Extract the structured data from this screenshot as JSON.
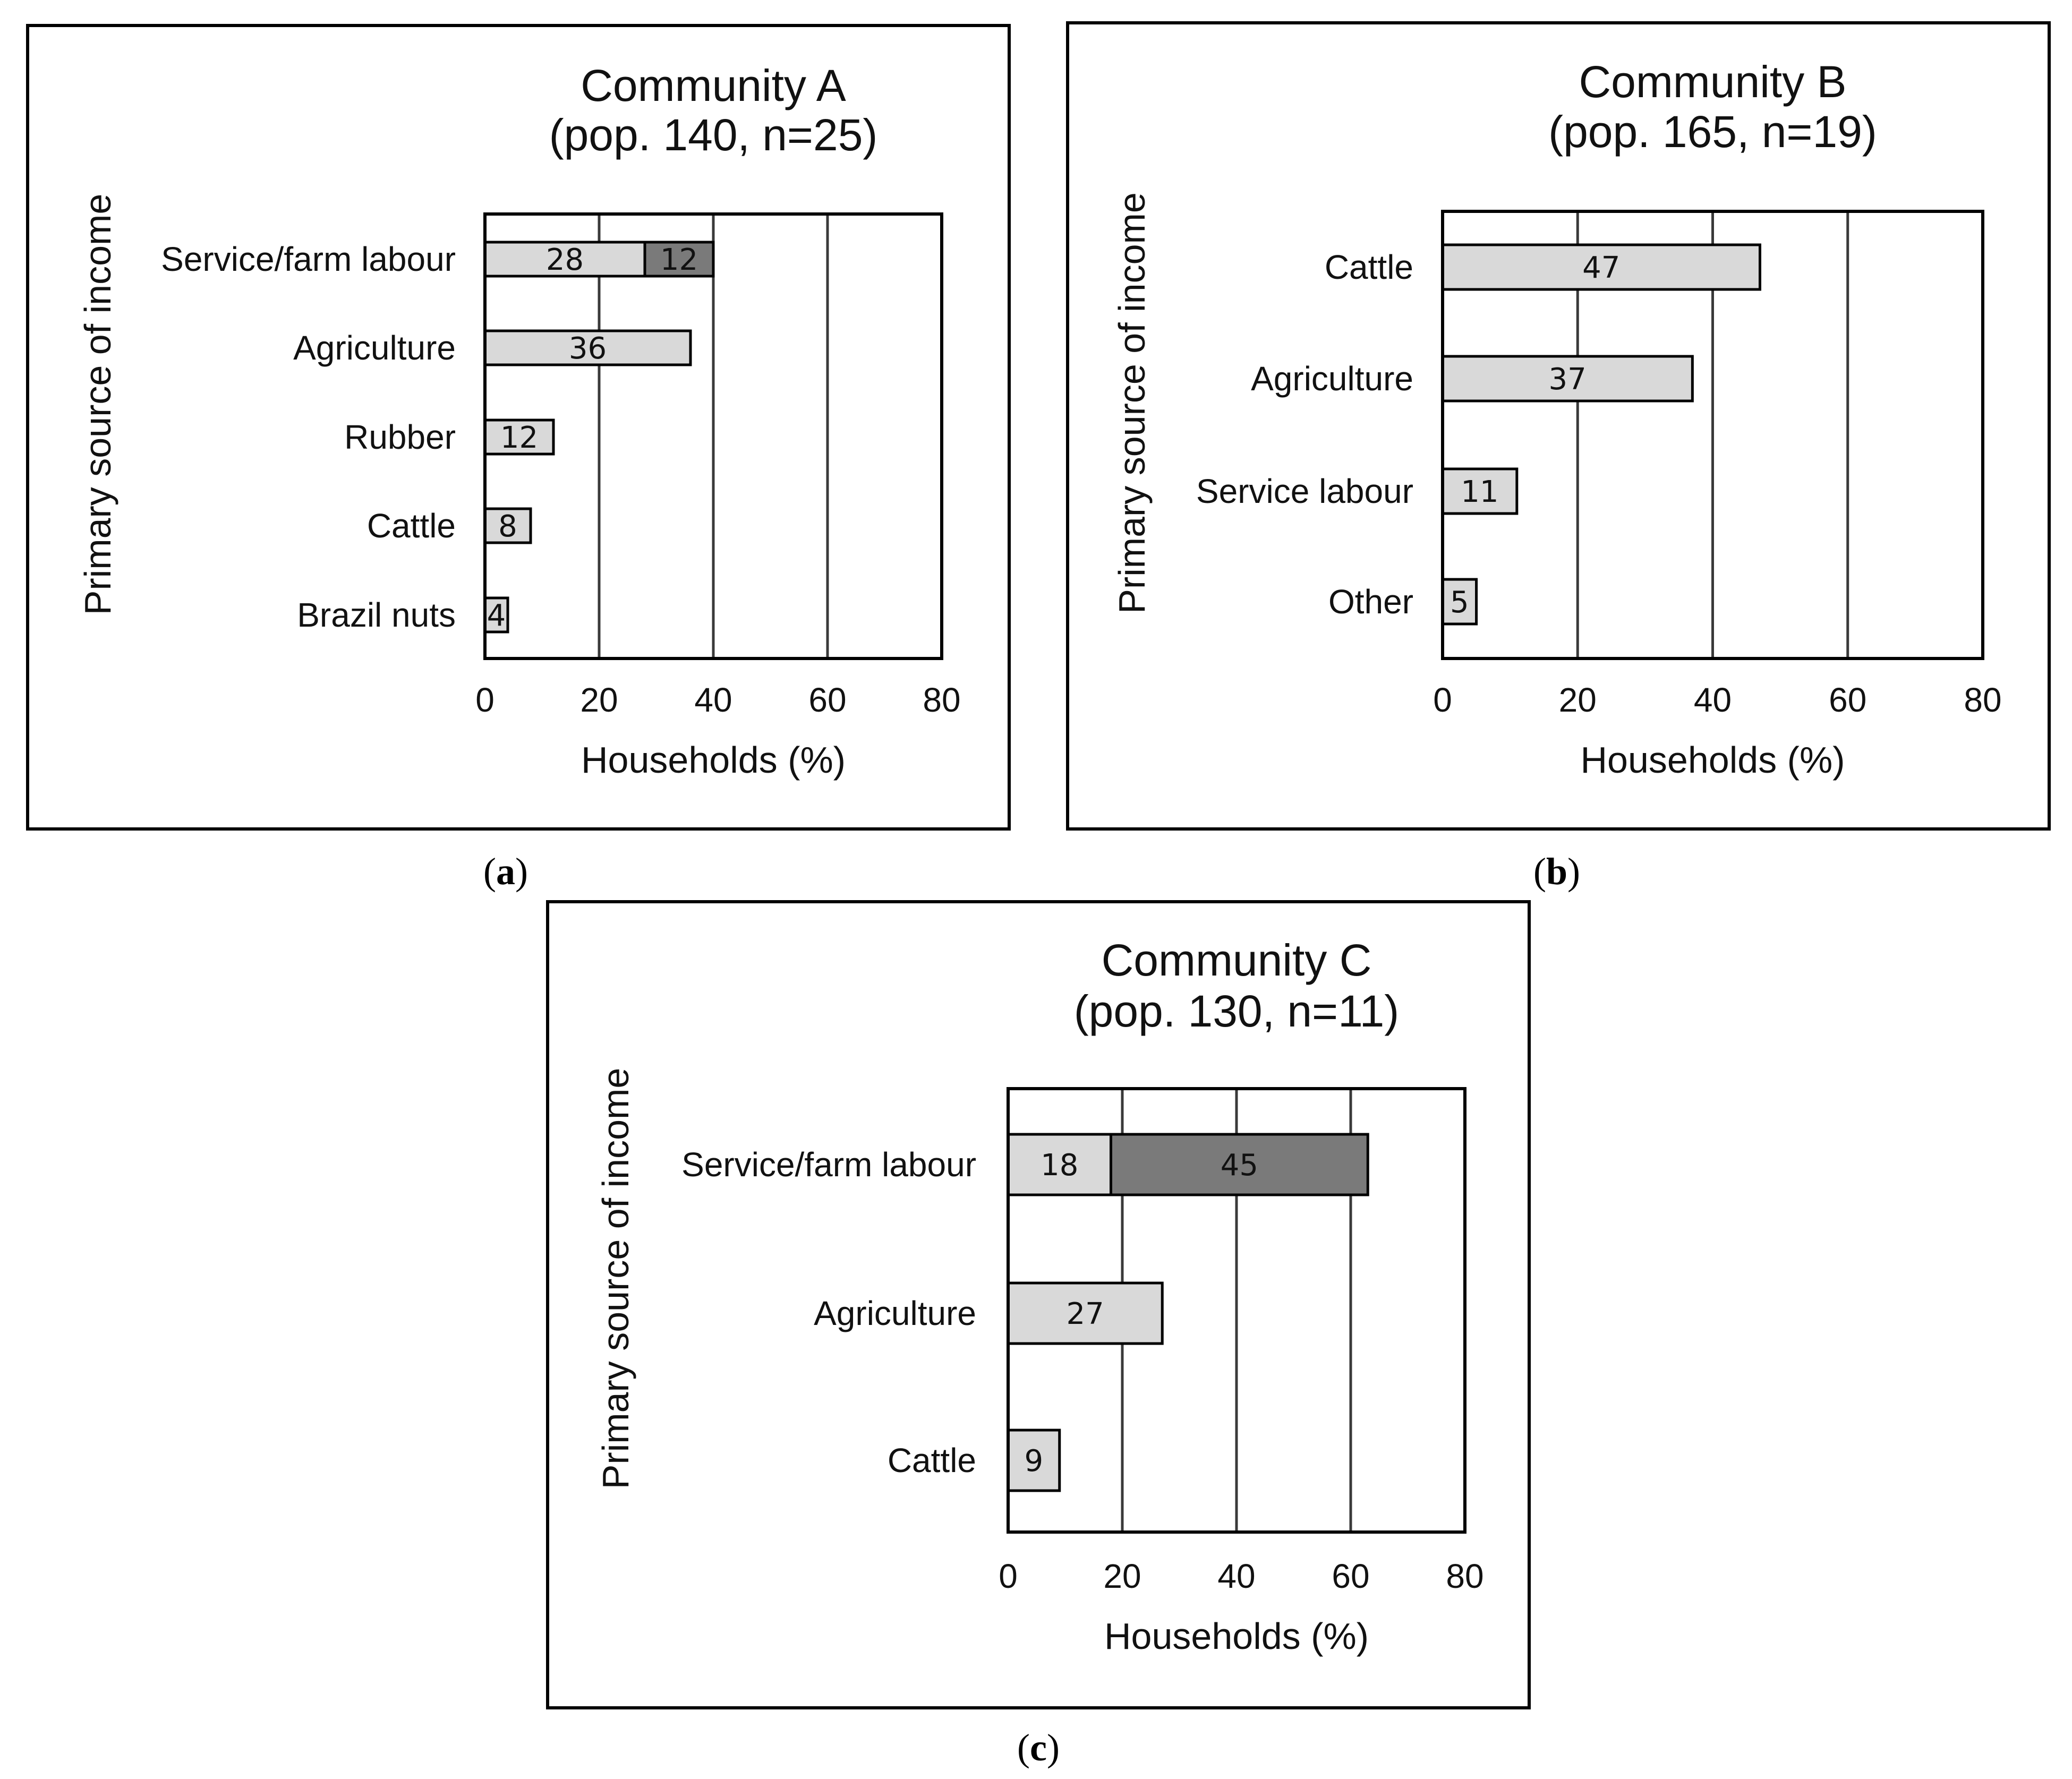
{
  "colors": {
    "primary_bar": "#d9d9d9",
    "secondary_bar": "#7a7a7a",
    "grid": "#3a3a3a",
    "border": "#000000"
  },
  "chart_data": [
    {
      "type": "bar",
      "orientation": "horizontal",
      "stacked": true,
      "panel_letter": "a",
      "title": "Community A",
      "subtitle": "(pop. 140, n=25)",
      "xlabel": "Households (%)",
      "ylabel": "Primary source of income",
      "xlim": [
        0,
        80
      ],
      "xticks": [
        0,
        20,
        40,
        60,
        80
      ],
      "grid": true,
      "categories": [
        "Service/farm labour",
        "Agriculture",
        "Rubber",
        "Cattle",
        "Brazil nuts"
      ],
      "series": [
        {
          "name": "primary",
          "values": [
            28,
            36,
            12,
            8,
            4
          ]
        },
        {
          "name": "secondary",
          "values": [
            12,
            0,
            0,
            0,
            0
          ]
        }
      ]
    },
    {
      "type": "bar",
      "orientation": "horizontal",
      "stacked": true,
      "panel_letter": "b",
      "title": "Community B",
      "subtitle": "(pop. 165, n=19)",
      "xlabel": "Households (%)",
      "ylabel": "Primary source of income",
      "xlim": [
        0,
        80
      ],
      "xticks": [
        0,
        20,
        40,
        60,
        80
      ],
      "grid": true,
      "categories": [
        "Cattle",
        "Agriculture",
        "Service labour",
        "Other"
      ],
      "series": [
        {
          "name": "primary",
          "values": [
            47,
            37,
            11,
            5
          ]
        }
      ]
    },
    {
      "type": "bar",
      "orientation": "horizontal",
      "stacked": true,
      "panel_letter": "c",
      "title": "Community C",
      "subtitle": "(pop. 130, n=11)",
      "xlabel": "Households (%)",
      "ylabel": "Primary source of income",
      "xlim": [
        0,
        80
      ],
      "xticks": [
        0,
        20,
        40,
        60,
        80
      ],
      "grid": true,
      "categories": [
        "Service/farm labour",
        "Agriculture",
        "Cattle"
      ],
      "series": [
        {
          "name": "primary",
          "values": [
            18,
            27,
            9
          ]
        },
        {
          "name": "secondary",
          "values": [
            45,
            0,
            0
          ]
        }
      ]
    }
  ]
}
